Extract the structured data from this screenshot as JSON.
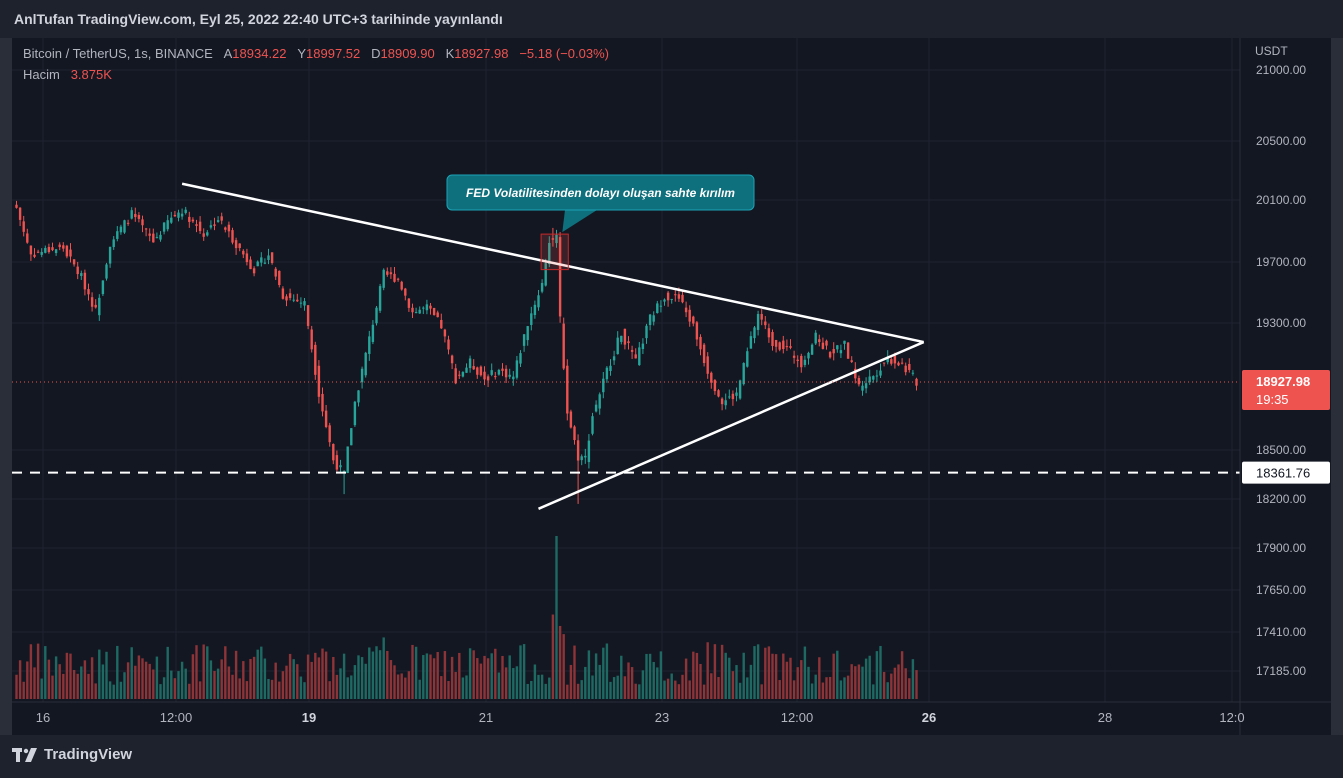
{
  "header": {
    "publish_note": "AnlTufan TradingView.com, Eyl 25, 2022 22:40 UTC+3 tarihinde yayınlandı"
  },
  "legend": {
    "symbol": "Bitcoin / TetherUS, 1s, BINANCE",
    "open_label": "A",
    "open": "18934.22",
    "high_label": "Y",
    "high": "18997.52",
    "low_label": "D",
    "low": "18909.90",
    "close_label": "K",
    "close": "18927.98",
    "change": "−5.18 (−0.03%)",
    "volume_label": "Hacim",
    "volume": "3.875K"
  },
  "branding": {
    "name": "TradingView",
    "logo_icon": "tradingview-logo-icon"
  },
  "colors": {
    "background": "#131722",
    "up": "#26a69a",
    "down": "#ef5350",
    "up_volume": "#1e6a63",
    "down_volume": "#8c3437",
    "annotation": "#0e6f7d",
    "grid": "#1f2330",
    "text": "#b2b5be"
  },
  "chart_data": {
    "type": "candlestick",
    "currency": "USDT",
    "y_ticks": [
      "21000.00",
      "20500.00",
      "20100.00",
      "19700.00",
      "19300.00",
      "18500.00",
      "18200.00",
      "17900.00",
      "17650.00",
      "17410.00",
      "17185.00"
    ],
    "x_ticks": [
      "16",
      "12:00",
      "19",
      "21",
      "23",
      "12:00",
      "26",
      "28",
      "12:0"
    ],
    "last_price": "18927.98",
    "countdown": "19:35",
    "horizontal_line_price": "18361.76",
    "annotation": "FED Volatilitesinden dolayı oluşan sahte kırılım",
    "anchor_points": [
      [
        0,
        20050
      ],
      [
        4,
        19750
      ],
      [
        9,
        19780
      ],
      [
        13,
        19790
      ],
      [
        18,
        19600
      ],
      [
        22,
        19380
      ],
      [
        26,
        19820
      ],
      [
        32,
        20010
      ],
      [
        38,
        19830
      ],
      [
        42,
        19960
      ],
      [
        46,
        20040
      ],
      [
        52,
        19880
      ],
      [
        56,
        19980
      ],
      [
        60,
        19850
      ],
      [
        66,
        19650
      ],
      [
        70,
        19750
      ],
      [
        74,
        19480
      ],
      [
        80,
        19430
      ],
      [
        84,
        18860
      ],
      [
        88,
        18440
      ],
      [
        91,
        18350
      ],
      [
        94,
        18800
      ],
      [
        98,
        19200
      ],
      [
        102,
        19620
      ],
      [
        106,
        19590
      ],
      [
        110,
        19370
      ],
      [
        114,
        19400
      ],
      [
        118,
        19280
      ],
      [
        122,
        18950
      ],
      [
        126,
        19050
      ],
      [
        130,
        18950
      ],
      [
        134,
        19000
      ],
      [
        138,
        18960
      ],
      [
        142,
        19300
      ],
      [
        146,
        19560
      ],
      [
        148,
        19840
      ],
      [
        150,
        19850
      ],
      [
        151,
        19320
      ],
      [
        153,
        18740
      ],
      [
        156,
        18460
      ],
      [
        158,
        18450
      ],
      [
        160,
        18720
      ],
      [
        164,
        19000
      ],
      [
        168,
        19240
      ],
      [
        172,
        19050
      ],
      [
        176,
        19330
      ],
      [
        180,
        19480
      ],
      [
        184,
        19460
      ],
      [
        188,
        19280
      ],
      [
        192,
        19000
      ],
      [
        196,
        18800
      ],
      [
        200,
        18850
      ],
      [
        204,
        19200
      ],
      [
        206,
        19360
      ],
      [
        210,
        19180
      ],
      [
        214,
        19140
      ],
      [
        218,
        19050
      ],
      [
        222,
        19210
      ],
      [
        226,
        19110
      ],
      [
        230,
        19160
      ],
      [
        234,
        18900
      ],
      [
        238,
        18970
      ],
      [
        242,
        19080
      ],
      [
        246,
        19040
      ],
      [
        250,
        18930
      ]
    ],
    "trendlines": [
      {
        "name": "upper",
        "from": [
          46,
          20210
        ],
        "to": [
          252,
          19180
        ]
      },
      {
        "name": "lower",
        "from": [
          145,
          18140
        ],
        "to": [
          252,
          19180
        ]
      }
    ]
  }
}
